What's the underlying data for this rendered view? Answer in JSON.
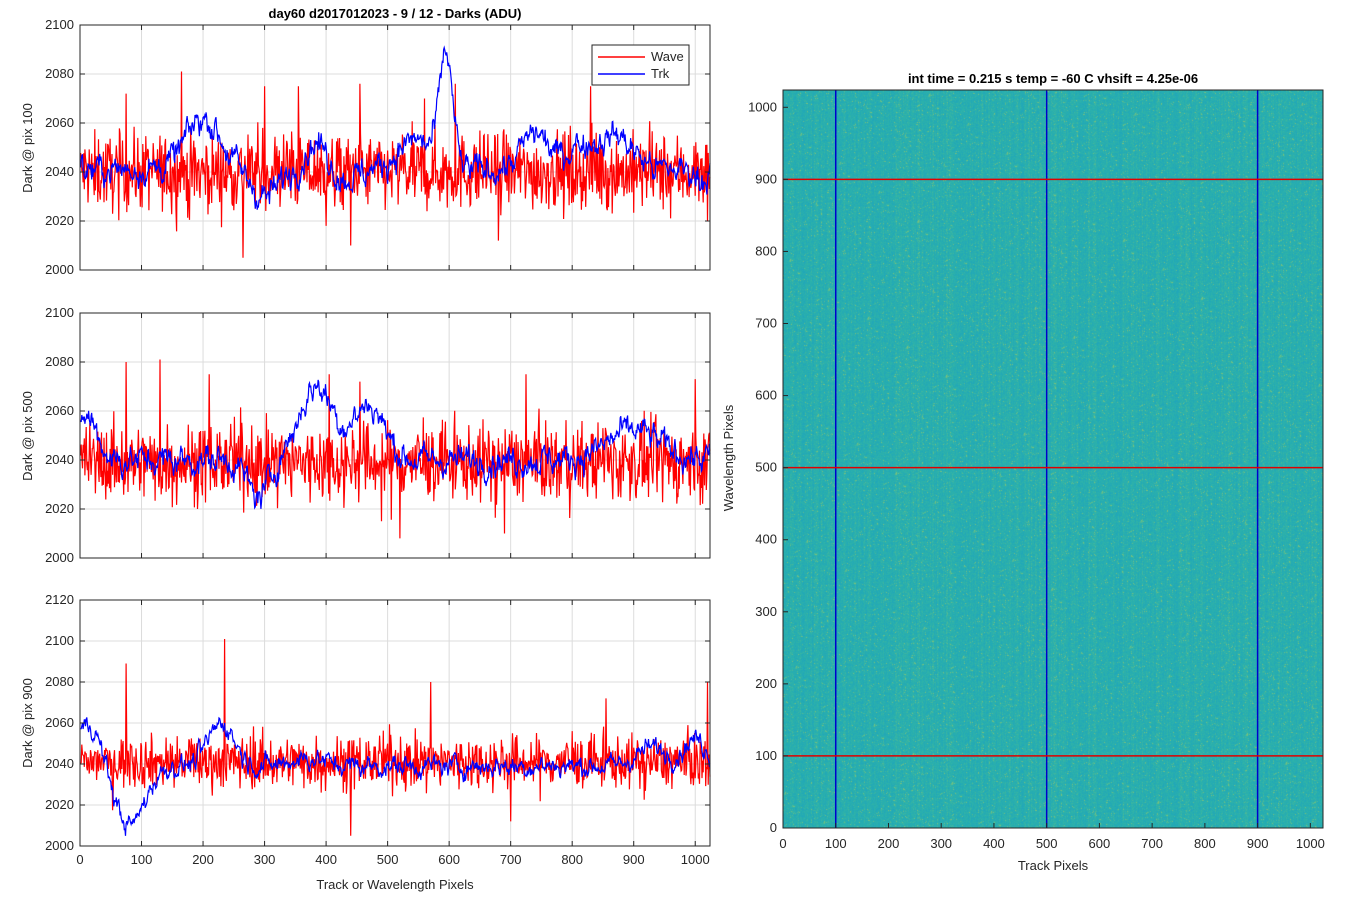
{
  "figure": {
    "top_title": "day60 d2017012023 - 9 / 12 - Darks (ADU)",
    "xlabel_bottom": "Track or Wavelength Pixels"
  },
  "chart_data": [
    {
      "type": "line",
      "ylabel": "Dark @ pix 100",
      "xlim": [
        0,
        1024
      ],
      "ylim": [
        2000,
        2100
      ],
      "xticks": [
        0,
        100,
        200,
        300,
        400,
        500,
        600,
        700,
        800,
        900,
        1000
      ],
      "yticks": [
        2000,
        2020,
        2040,
        2060,
        2080,
        2100
      ],
      "grid": true,
      "legend": {
        "placement": "top-right",
        "entries": [
          "Wave",
          "Trk"
        ]
      },
      "series": [
        {
          "name": "Wave",
          "color": "#ff0000",
          "base": 2040,
          "noise": 11,
          "spikes": [
            [
              75,
              2072
            ],
            [
              165,
              2081
            ],
            [
              265,
              2005
            ],
            [
              300,
              2075
            ],
            [
              355,
              2075
            ],
            [
              400,
              2018
            ],
            [
              440,
              2010
            ],
            [
              455,
              2076
            ],
            [
              560,
              2070
            ],
            [
              610,
              2076
            ],
            [
              680,
              2012
            ],
            [
              830,
              2075
            ]
          ]
        },
        {
          "name": "Trk",
          "color": "#0000ff",
          "base": 2041,
          "noise": 6,
          "features": [
            [
              200,
              40,
              2062
            ],
            [
              300,
              30,
              2030
            ],
            [
              385,
              25,
              2052
            ],
            [
              430,
              30,
              2037
            ],
            [
              595,
              15,
              2087
            ],
            [
              545,
              40,
              2053
            ],
            [
              740,
              30,
              2056
            ],
            [
              810,
              30,
              2050
            ],
            [
              870,
              40,
              2055
            ],
            [
              1010,
              15,
              2038
            ]
          ]
        }
      ]
    },
    {
      "type": "line",
      "ylabel": "Dark @ pix 500",
      "xlim": [
        0,
        1024
      ],
      "ylim": [
        2000,
        2100
      ],
      "xticks": [
        0,
        100,
        200,
        300,
        400,
        500,
        600,
        700,
        800,
        900,
        1000
      ],
      "yticks": [
        2000,
        2020,
        2040,
        2060,
        2080,
        2100
      ],
      "grid": true,
      "series": [
        {
          "name": "Wave",
          "color": "#ff0000",
          "base": 2039,
          "noise": 11,
          "spikes": [
            [
              75,
              2080
            ],
            [
              130,
              2081
            ],
            [
              210,
              2075
            ],
            [
              405,
              2075
            ],
            [
              455,
              2072
            ],
            [
              490,
              2015
            ],
            [
              520,
              2008
            ],
            [
              690,
              2010
            ],
            [
              725,
              2075
            ],
            [
              1000,
              2073
            ]
          ]
        },
        {
          "name": "Trk",
          "color": "#0000ff",
          "base": 2040,
          "noise": 6,
          "features": [
            [
              10,
              25,
              2058
            ],
            [
              290,
              25,
              2025
            ],
            [
              385,
              40,
              2070
            ],
            [
              470,
              35,
              2062
            ],
            [
              900,
              60,
              2052
            ]
          ]
        }
      ]
    },
    {
      "type": "line",
      "ylabel": "Dark @ pix 900",
      "xlim": [
        0,
        1024
      ],
      "ylim": [
        2000,
        2120
      ],
      "xticks": [
        0,
        100,
        200,
        300,
        400,
        500,
        600,
        700,
        800,
        900,
        1000
      ],
      "yticks": [
        2000,
        2020,
        2040,
        2060,
        2080,
        2100,
        2120
      ],
      "grid": true,
      "series": [
        {
          "name": "Wave",
          "color": "#ff0000",
          "base": 2041,
          "noise": 9,
          "spikes": [
            [
              75,
              2089
            ],
            [
              235,
              2101
            ],
            [
              440,
              2005
            ],
            [
              570,
              2080
            ],
            [
              700,
              2012
            ],
            [
              855,
              2072
            ],
            [
              1020,
              2080
            ]
          ]
        },
        {
          "name": "Trk",
          "color": "#0000ff",
          "base": 2039,
          "noise": 5,
          "features": [
            [
              15,
              30,
              2060
            ],
            [
              80,
              35,
              2010
            ],
            [
              230,
              30,
              2060
            ],
            [
              370,
              40,
              2043
            ],
            [
              930,
              35,
              2048
            ],
            [
              1000,
              25,
              2052
            ]
          ]
        }
      ]
    },
    {
      "type": "heatmap",
      "title": "int time = 0.215 s   temp = -60 C   vhsift = 4.25e-06",
      "xlabel": "Track Pixels",
      "ylabel": "Wavelength Pixels",
      "xlim": [
        0,
        1024
      ],
      "ylim": [
        0,
        1024
      ],
      "xticks": [
        0,
        100,
        200,
        300,
        400,
        500,
        600,
        700,
        800,
        900,
        1000
      ],
      "yticks": [
        0,
        100,
        200,
        300,
        400,
        500,
        600,
        700,
        800,
        900,
        1000
      ],
      "colormap": [
        "#1f9fc4",
        "#21a8b8",
        "#2fb3a8",
        "#7cc27a"
      ],
      "vertical_lines": {
        "color": "#0000cc",
        "x": [
          100,
          500,
          900
        ]
      },
      "horizontal_lines": {
        "color": "#e00000",
        "y": [
          100,
          500,
          900
        ]
      }
    }
  ]
}
